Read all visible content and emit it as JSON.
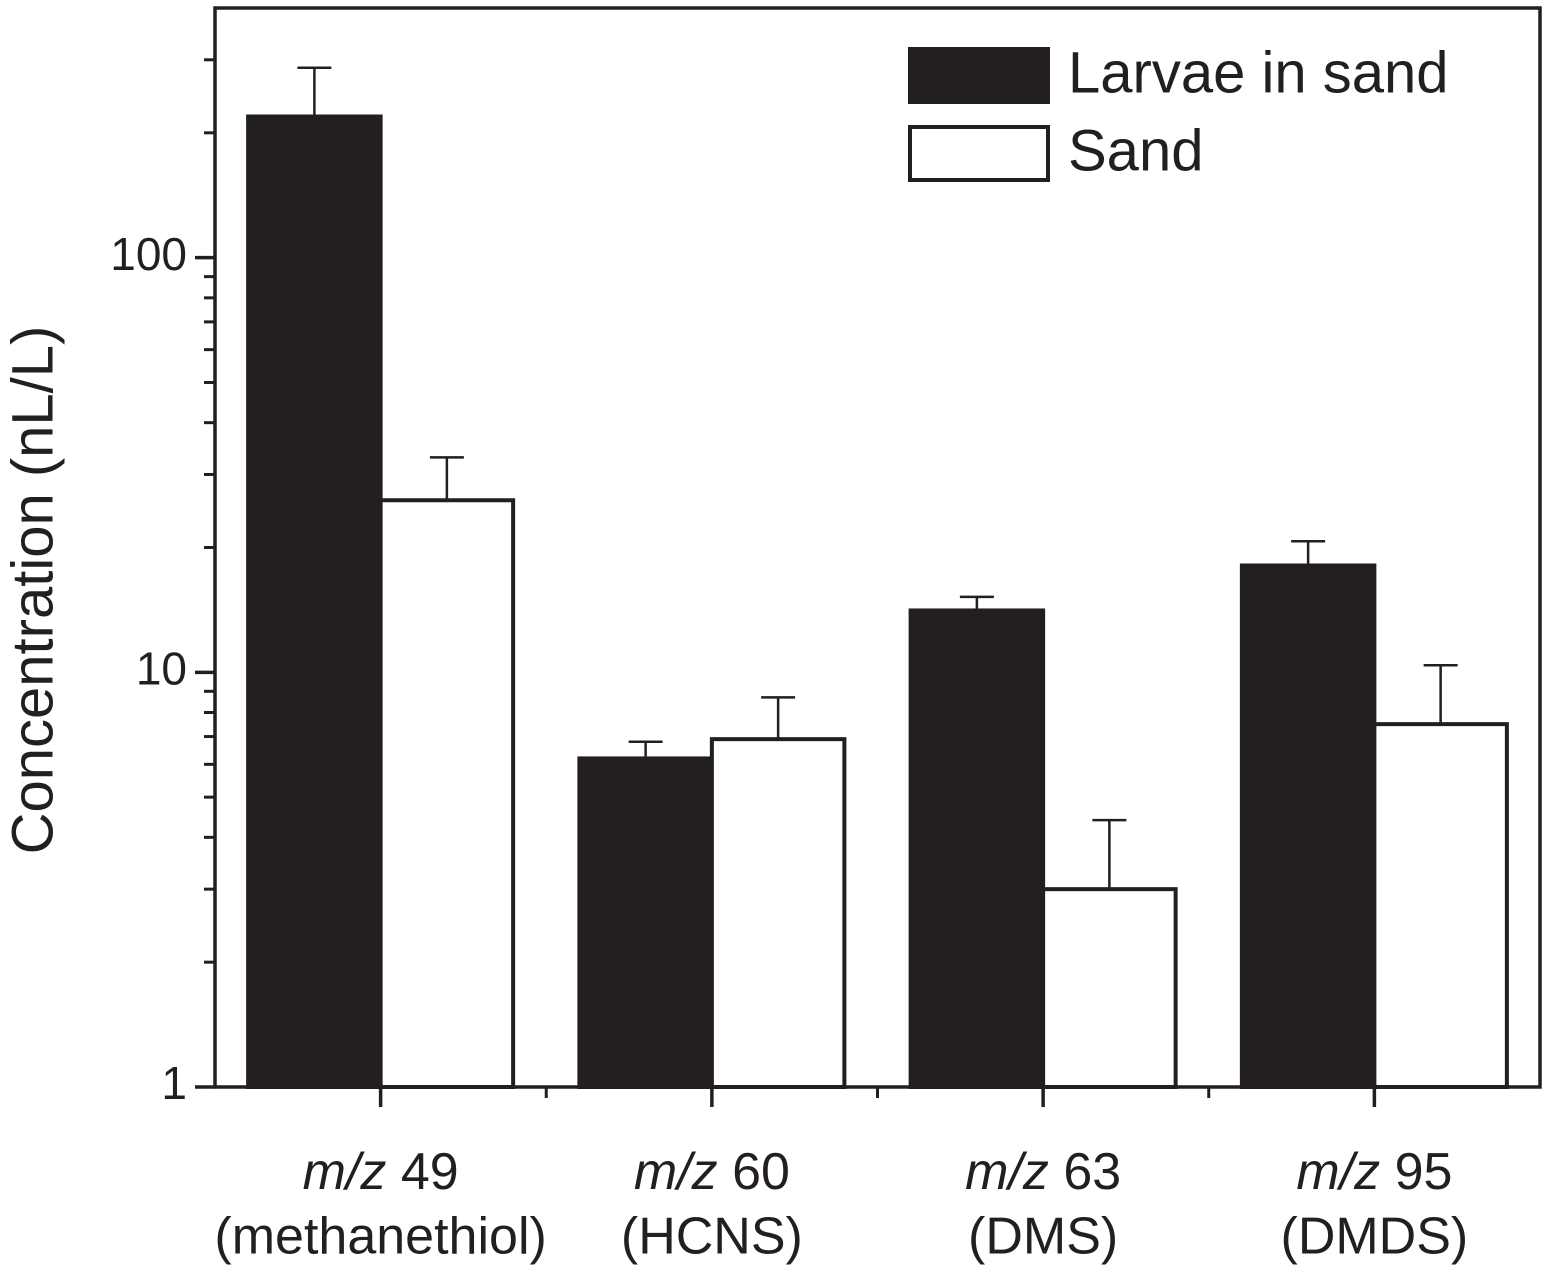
{
  "chart_data": {
    "type": "bar",
    "ylabel": "Concentration (nL/L)",
    "log_scale": true,
    "categories": [
      [
        "m/z",
        "49",
        "(methanethiol)"
      ],
      [
        "m/z",
        "60",
        "(HCNS)"
      ],
      [
        "m/z",
        "63",
        "(DMS)"
      ],
      [
        "m/z",
        "95",
        "(DMDS)"
      ]
    ],
    "series": [
      {
        "name": "Larvae in sand",
        "color": "#231f20",
        "values": [
          219,
          6.2,
          14.1,
          18.1
        ],
        "errors": [
          68,
          0.6,
          1.1,
          2.6
        ]
      },
      {
        "name": "Sand",
        "color": "#ffffff",
        "values": [
          26,
          6.9,
          3.0,
          7.5
        ],
        "errors": [
          7,
          1.8,
          1.4,
          2.9
        ]
      }
    ],
    "ylim": [
      1,
      400
    ],
    "yticks": [
      1,
      10,
      100
    ],
    "yminorticks": [
      2,
      3,
      4,
      5,
      6,
      7,
      8,
      9,
      20,
      30,
      40,
      50,
      60,
      70,
      80,
      90,
      200,
      300
    ],
    "legend": "top-right"
  }
}
